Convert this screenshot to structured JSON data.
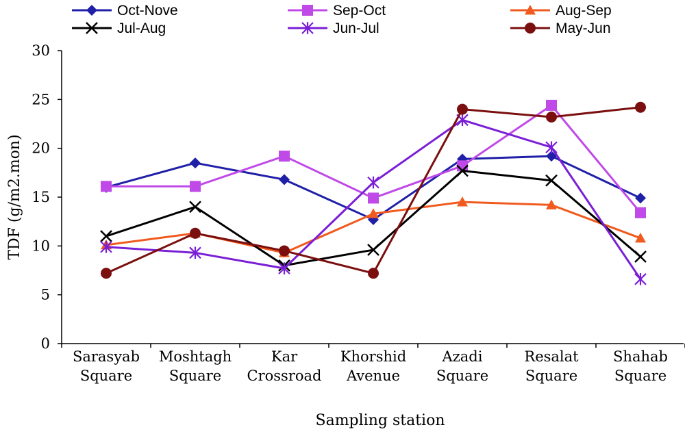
{
  "chart_data": {
    "type": "line",
    "title": "",
    "xlabel": "Sampling station",
    "ylabel": "TDF (g/m2.mon)",
    "ylim": [
      0,
      30
    ],
    "yticks": [
      0,
      5,
      10,
      15,
      20,
      25,
      30
    ],
    "categories": [
      [
        "Sarasyab",
        "Square"
      ],
      [
        "Moshtagh",
        "Square"
      ],
      [
        "Kar",
        "Crossroad"
      ],
      [
        "Khorshid",
        "Avenue"
      ],
      [
        "Azadi",
        "Square"
      ],
      [
        "Resalat",
        "Square"
      ],
      [
        "Shahab",
        "Square"
      ]
    ],
    "grid": false,
    "legend_position": "top",
    "series": [
      {
        "name": "Oct-Nove",
        "color": "#1F1FA8",
        "marker": "diamond",
        "values": [
          16.0,
          18.5,
          16.8,
          12.7,
          18.9,
          19.2,
          14.9
        ]
      },
      {
        "name": "Sep-Oct",
        "color": "#C04AE8",
        "marker": "square",
        "values": [
          16.1,
          16.1,
          19.2,
          14.9,
          18.2,
          24.4,
          13.4
        ]
      },
      {
        "name": "Aug-Sep",
        "color": "#F05A1E",
        "marker": "triangle",
        "values": [
          10.1,
          11.3,
          9.3,
          13.3,
          14.5,
          14.2,
          10.8
        ]
      },
      {
        "name": "Jul-Aug",
        "color": "#000000",
        "marker": "x",
        "values": [
          11.0,
          14.0,
          8.0,
          9.6,
          17.7,
          16.7,
          8.9
        ]
      },
      {
        "name": "Jun-Jul",
        "color": "#7A1FD6",
        "marker": "asterisk",
        "values": [
          9.9,
          9.3,
          7.7,
          16.5,
          22.9,
          20.1,
          6.6
        ]
      },
      {
        "name": "May-Jun",
        "color": "#7B0F0F",
        "marker": "circle",
        "values": [
          7.2,
          11.3,
          9.5,
          7.2,
          24.0,
          23.2,
          24.2
        ]
      }
    ]
  }
}
